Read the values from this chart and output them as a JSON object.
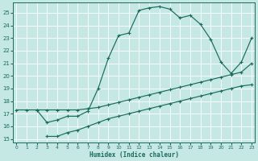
{
  "xlabel": "Humidex (Indice chaleur)",
  "bg_color": "#c5e8e5",
  "grid_color": "#b8d8d5",
  "line_color": "#1a6b5a",
  "xlim": [
    -0.3,
    23.3
  ],
  "ylim": [
    14.7,
    25.8
  ],
  "xticks": [
    0,
    1,
    2,
    3,
    4,
    5,
    6,
    7,
    8,
    9,
    10,
    11,
    12,
    13,
    14,
    15,
    16,
    17,
    18,
    19,
    20,
    21,
    22,
    23
  ],
  "yticks": [
    15,
    16,
    17,
    18,
    19,
    20,
    21,
    22,
    23,
    24,
    25
  ],
  "curve_top_x": [
    2,
    3,
    4,
    5,
    6,
    7,
    8,
    9,
    10,
    11,
    12,
    13,
    14,
    15,
    16,
    17,
    18,
    19,
    20,
    21,
    22,
    23
  ],
  "curve_top_y": [
    17.3,
    16.3,
    16.5,
    16.8,
    16.8,
    17.2,
    19.0,
    21.4,
    23.2,
    23.4,
    25.2,
    25.4,
    25.5,
    25.3,
    24.6,
    24.8,
    24.1,
    22.9,
    21.1,
    20.2,
    21.1,
    23.0
  ],
  "curve_mid_x": [
    0,
    1,
    2,
    3,
    4,
    5,
    6,
    7,
    8,
    9,
    10,
    11,
    12,
    13,
    14,
    15,
    16,
    17,
    18,
    19,
    20,
    21,
    22,
    23
  ],
  "curve_mid_y": [
    17.3,
    17.3,
    17.3,
    17.3,
    17.3,
    17.3,
    17.3,
    17.4,
    17.5,
    17.7,
    17.9,
    18.1,
    18.3,
    18.5,
    18.7,
    18.9,
    19.1,
    19.3,
    19.5,
    19.7,
    19.9,
    20.1,
    20.3,
    21.0
  ],
  "curve_bot_x": [
    3,
    4,
    5,
    6,
    7,
    8,
    9,
    10,
    11,
    12,
    13,
    14,
    15,
    16,
    17,
    18,
    19,
    20,
    21,
    22,
    23
  ],
  "curve_bot_y": [
    15.2,
    15.2,
    15.5,
    15.7,
    16.0,
    16.3,
    16.6,
    16.8,
    17.0,
    17.2,
    17.4,
    17.6,
    17.8,
    18.0,
    18.2,
    18.4,
    18.6,
    18.8,
    19.0,
    19.2,
    19.3
  ]
}
